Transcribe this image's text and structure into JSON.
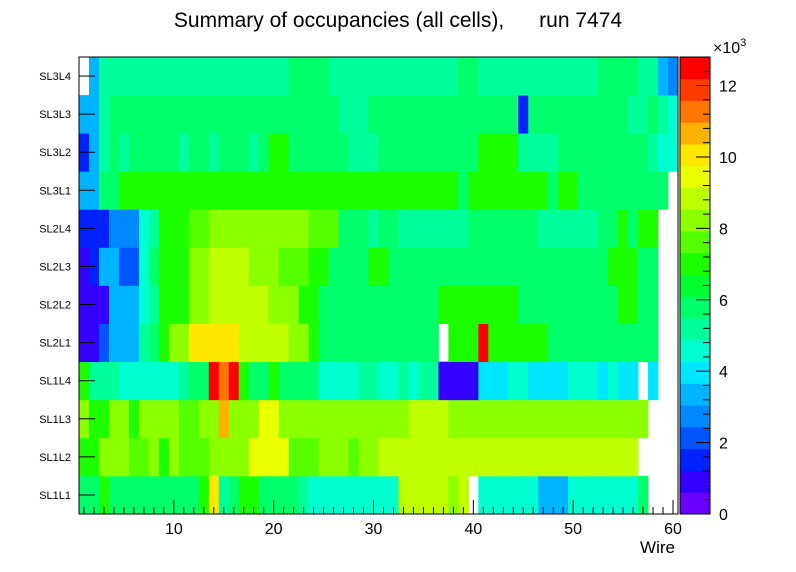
{
  "chart_data": {
    "type": "heatmap",
    "title": "Summary of occupancies (all cells),      run 7474",
    "xlabel": "Wire",
    "ylabel": "",
    "x_range": [
      0.5,
      60.5
    ],
    "x_ticks": [
      10,
      20,
      30,
      40,
      50,
      60
    ],
    "y_categories": [
      "SL1L1",
      "SL1L2",
      "SL1L3",
      "SL1L4",
      "SL2L1",
      "SL2L2",
      "SL2L3",
      "SL2L4",
      "SL3L1",
      "SL3L2",
      "SL3L3",
      "SL3L4"
    ],
    "z_range": [
      0,
      12800
    ],
    "z_ticks": [
      0,
      2,
      4,
      6,
      8,
      10,
      12
    ],
    "z_multiplier_label": "×10",
    "z_multiplier_exponent": "3",
    "palette": [
      "#6a00ff",
      "#3300ff",
      "#0022ff",
      "#0055ff",
      "#0088ff",
      "#00b4ff",
      "#00e6ff",
      "#00ffd0",
      "#00ff9c",
      "#00ff6a",
      "#00ff30",
      "#1cff00",
      "#55ff00",
      "#8cff00",
      "#c0ff00",
      "#eaff00",
      "#ffe800",
      "#ffb000",
      "#ff7600",
      "#ff3c00",
      "#ff0000"
    ],
    "rows": {
      "SL1L1": [
        6000,
        6000,
        7200,
        6000,
        6000,
        6000,
        6000,
        6000,
        6000,
        6000,
        6000,
        6000,
        7000,
        9800,
        5000,
        6000,
        6800,
        6800,
        6000,
        6000,
        6000,
        6000,
        5400,
        4500,
        4500,
        4500,
        4500,
        4500,
        4500,
        4500,
        4500,
        4500,
        9000,
        9000,
        9000,
        9000,
        9000,
        8200,
        9000,
        null,
        4500,
        4500,
        4500,
        4500,
        4500,
        4500,
        3500,
        3500,
        3500,
        4500,
        4500,
        4500,
        4500,
        4500,
        4500,
        4500,
        5500,
        null,
        null,
        null
      ],
      "SL1L2": [
        7200,
        7200,
        8200,
        8200,
        8200,
        7500,
        7800,
        8200,
        7200,
        8200,
        7500,
        7500,
        7500,
        8200,
        8200,
        8200,
        8200,
        9600,
        9600,
        9600,
        9600,
        7500,
        7500,
        7500,
        8000,
        8000,
        8000,
        7500,
        8000,
        8000,
        9000,
        9000,
        9000,
        9000,
        9000,
        9000,
        9000,
        9000,
        9000,
        9000,
        9000,
        9000,
        9000,
        9000,
        9000,
        9000,
        9000,
        9000,
        9000,
        9000,
        9000,
        9000,
        9000,
        9000,
        9000,
        9000,
        null,
        null,
        null,
        null
      ],
      "SL1L3": [
        8000,
        7200,
        7200,
        8200,
        8200,
        7200,
        8200,
        8200,
        8200,
        8200,
        7500,
        7500,
        8200,
        8200,
        10800,
        8200,
        8200,
        8200,
        9600,
        9600,
        8200,
        8200,
        8200,
        8200,
        8200,
        8200,
        8200,
        8200,
        8200,
        8200,
        8200,
        8200,
        8200,
        8800,
        8800,
        8800,
        8800,
        8200,
        8200,
        8200,
        8200,
        8200,
        8200,
        8200,
        8200,
        8200,
        8200,
        8200,
        8200,
        8200,
        8200,
        8200,
        8200,
        8200,
        8200,
        8200,
        8200,
        null,
        null,
        null
      ],
      "SL1L4": [
        6800,
        5400,
        5400,
        5400,
        4500,
        4500,
        4500,
        4500,
        4500,
        4500,
        5400,
        6000,
        6000,
        12500,
        11000,
        12500,
        6800,
        6000,
        6000,
        6800,
        6000,
        6000,
        6000,
        6000,
        4600,
        4600,
        4600,
        4600,
        5400,
        5400,
        4500,
        4500,
        5400,
        4500,
        5400,
        5400,
        1200,
        1200,
        1200,
        1200,
        4000,
        4000,
        4000,
        4600,
        4600,
        3800,
        3800,
        3800,
        3800,
        4600,
        4600,
        4600,
        3800,
        4600,
        3800,
        3800,
        null,
        3800,
        null,
        null
      ],
      "SL2L1": [
        1000,
        1000,
        2200,
        3100,
        3100,
        3100,
        5000,
        6000,
        7300,
        8000,
        8000,
        10000,
        10000,
        10000,
        10000,
        10000,
        9000,
        9000,
        9000,
        9000,
        9000,
        8000,
        8000,
        7000,
        6000,
        6000,
        6000,
        6000,
        6000,
        6000,
        6000,
        6000,
        6000,
        6000,
        6000,
        6000,
        null,
        6800,
        6800,
        6800,
        12600,
        6800,
        6800,
        6800,
        6800,
        6800,
        7300,
        6000,
        6000,
        6000,
        6000,
        6000,
        6000,
        6000,
        6000,
        6000,
        6000,
        6000,
        null,
        null
      ],
      "SL2L2": [
        1000,
        1000,
        1200,
        3100,
        3100,
        3100,
        4600,
        5000,
        7300,
        7300,
        7300,
        8000,
        8000,
        9000,
        9000,
        9000,
        9000,
        9000,
        9000,
        8000,
        8000,
        8000,
        7000,
        7000,
        6000,
        6000,
        6000,
        6000,
        6000,
        6000,
        6000,
        6000,
        6000,
        6000,
        6000,
        6000,
        7000,
        7000,
        7000,
        7000,
        7000,
        7000,
        7000,
        7000,
        6000,
        6000,
        6000,
        6000,
        6000,
        6000,
        6000,
        6000,
        6000,
        6000,
        7000,
        7000,
        6000,
        6000,
        null,
        null
      ],
      "SL2L3": [
        1000,
        1400,
        3100,
        3100,
        2200,
        2200,
        4600,
        6000,
        7300,
        7300,
        7300,
        8000,
        8000,
        9000,
        9000,
        9000,
        9000,
        8000,
        8000,
        8000,
        7800,
        7800,
        7800,
        6800,
        6800,
        6000,
        6000,
        6000,
        6000,
        6800,
        6800,
        6000,
        6000,
        6000,
        6000,
        6000,
        6000,
        6000,
        6000,
        6000,
        6000,
        6000,
        6000,
        6000,
        6000,
        6000,
        6000,
        6000,
        6000,
        6000,
        6000,
        6000,
        6000,
        7300,
        7300,
        7300,
        6000,
        6000,
        null,
        null
      ],
      "SL2L4": [
        1500,
        1500,
        1500,
        2500,
        2500,
        2500,
        4600,
        5400,
        7000,
        7300,
        7300,
        7800,
        7800,
        8000,
        8000,
        8000,
        8000,
        8000,
        8000,
        8000,
        8000,
        8000,
        8000,
        7800,
        7800,
        7800,
        6000,
        6000,
        6000,
        5400,
        6000,
        6000,
        5400,
        5400,
        5400,
        5400,
        5400,
        5400,
        5400,
        6000,
        6000,
        6000,
        6000,
        6000,
        6000,
        6000,
        5400,
        5400,
        5400,
        5400,
        5400,
        5400,
        6000,
        6000,
        7200,
        6000,
        7000,
        7000,
        null,
        null
      ],
      "SL3L1": [
        3200,
        3200,
        6000,
        6000,
        6800,
        6800,
        6800,
        6800,
        6800,
        6800,
        6800,
        6800,
        6800,
        6800,
        6800,
        6800,
        7200,
        7200,
        7200,
        7200,
        6800,
        6800,
        7200,
        6800,
        6800,
        6800,
        6800,
        6800,
        6800,
        6800,
        7200,
        7200,
        7200,
        6800,
        6800,
        6800,
        7200,
        6800,
        6000,
        7200,
        6800,
        6800,
        6800,
        6800,
        6800,
        6800,
        7200,
        6000,
        7200,
        6800,
        6000,
        6000,
        6000,
        6000,
        6000,
        6000,
        6000,
        6000,
        6000,
        null
      ],
      "SL3L2": [
        1800,
        3200,
        5400,
        6000,
        5400,
        6000,
        6000,
        6000,
        6000,
        6000,
        5400,
        6000,
        6000,
        5400,
        6000,
        6000,
        6000,
        5400,
        6000,
        7200,
        7200,
        6000,
        6000,
        6000,
        6000,
        6000,
        6000,
        5400,
        5400,
        5400,
        6000,
        6000,
        6000,
        6000,
        6000,
        6000,
        6000,
        6000,
        6000,
        6000,
        6800,
        6800,
        6800,
        6800,
        5400,
        5400,
        5400,
        5400,
        6000,
        6000,
        6000,
        6000,
        6000,
        6000,
        6000,
        6000,
        6000,
        5400,
        4400,
        4400
      ],
      "SL3L3": [
        3100,
        3600,
        5400,
        6000,
        6000,
        6000,
        6000,
        6000,
        6000,
        6000,
        6000,
        6000,
        6000,
        6000,
        6000,
        6000,
        6000,
        6000,
        6000,
        6000,
        6000,
        6000,
        6000,
        6000,
        6000,
        6000,
        5400,
        5400,
        5400,
        6000,
        6000,
        6000,
        6000,
        6000,
        6000,
        6000,
        6000,
        6000,
        6000,
        6000,
        6000,
        6000,
        6000,
        6000,
        1800,
        6000,
        6000,
        6000,
        6000,
        6000,
        6000,
        6000,
        6000,
        6000,
        6000,
        5400,
        5400,
        6000,
        5400,
        4600
      ],
      "SL3L4": [
        null,
        3300,
        5000,
        5000,
        5000,
        5000,
        5400,
        5400,
        5400,
        5000,
        5400,
        5400,
        5400,
        5400,
        5400,
        5400,
        5400,
        5400,
        5400,
        5400,
        5400,
        6000,
        6000,
        6000,
        6000,
        5400,
        5400,
        5400,
        5400,
        5400,
        5400,
        5400,
        5400,
        5400,
        5400,
        5400,
        5400,
        5400,
        6000,
        6000,
        5400,
        5400,
        5400,
        5400,
        5400,
        5400,
        5400,
        5400,
        5400,
        5400,
        5400,
        5400,
        6000,
        6000,
        6000,
        6000,
        5400,
        5400,
        3600,
        3000
      ]
    }
  }
}
